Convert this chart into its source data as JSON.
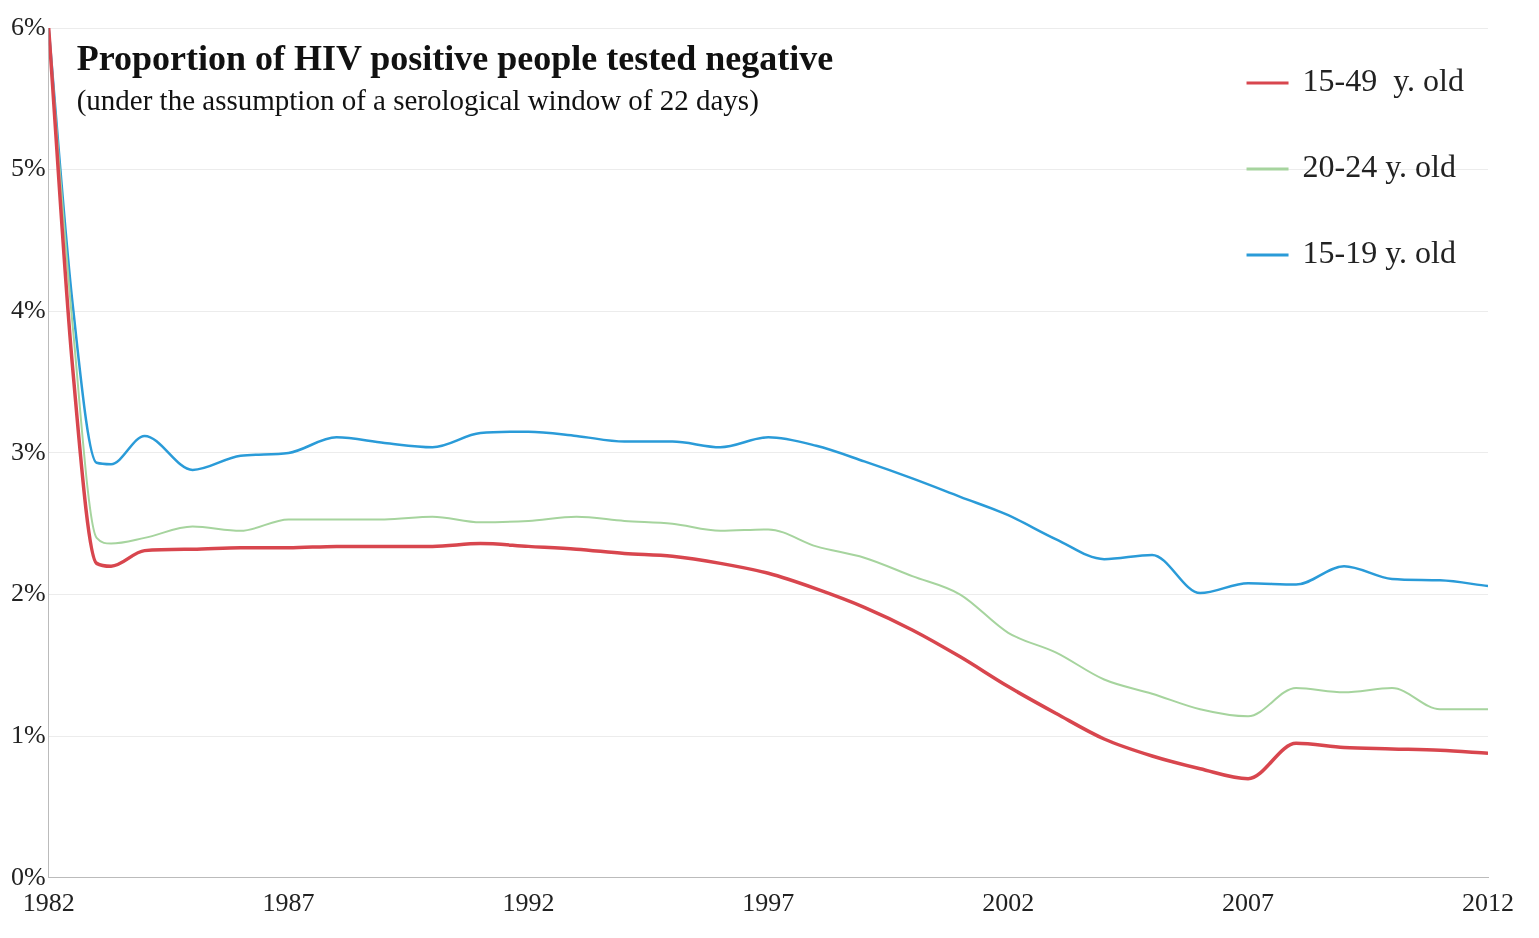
{
  "chart_data": {
    "type": "line",
    "title": "Proportion of HIV positive people tested negative",
    "subtitle": "(under the assumption of a serological window of 22 days)",
    "x": [
      1982,
      1982.5,
      1983,
      1983.3,
      1984,
      1985,
      1986,
      1987,
      1988,
      1989,
      1990,
      1991,
      1992,
      1993,
      1994,
      1995,
      1996,
      1997,
      1998,
      1999,
      2000,
      2001,
      2002,
      2003,
      2004,
      2005,
      2006,
      2007,
      2008,
      2009,
      2010,
      2011,
      2012
    ],
    "series": [
      {
        "name": "15-49  y. old",
        "color": "#d8464e",
        "values": [
          6.0,
          3.6,
          2.22,
          2.2,
          2.31,
          2.32,
          2.33,
          2.33,
          2.34,
          2.34,
          2.34,
          2.36,
          2.34,
          2.32,
          2.29,
          2.27,
          2.22,
          2.15,
          2.04,
          1.91,
          1.75,
          1.56,
          1.35,
          1.16,
          0.98,
          0.86,
          0.77,
          0.7,
          0.95,
          0.92,
          0.91,
          0.9,
          0.88
        ]
      },
      {
        "name": "20-24 y. old",
        "color": "#a6d49e",
        "values": [
          6.0,
          3.9,
          2.4,
          2.36,
          2.4,
          2.48,
          2.45,
          2.53,
          2.53,
          2.53,
          2.55,
          2.51,
          2.52,
          2.55,
          2.52,
          2.5,
          2.45,
          2.46,
          2.34,
          2.26,
          2.13,
          2.0,
          1.73,
          1.59,
          1.4,
          1.3,
          1.19,
          1.14,
          1.34,
          1.31,
          1.34,
          1.19,
          1.19
        ]
      },
      {
        "name": "15-19 y. old",
        "color": "#2a9bd8",
        "values": [
          6.0,
          4.05,
          2.93,
          2.92,
          3.12,
          2.88,
          2.98,
          3.0,
          3.11,
          3.07,
          3.04,
          3.14,
          3.15,
          3.12,
          3.08,
          3.08,
          3.04,
          3.11,
          3.05,
          2.94,
          2.82,
          2.69,
          2.56,
          2.39,
          2.25,
          2.28,
          2.01,
          2.08,
          2.07,
          2.2,
          2.11,
          2.1,
          2.06
        ]
      }
    ],
    "xlim": [
      1982,
      2012
    ],
    "xticks": [
      1982,
      1987,
      1992,
      1997,
      2002,
      2007,
      2012
    ],
    "ylim": [
      0,
      6
    ],
    "yticks": [
      {
        "value": 0,
        "label": "0%"
      },
      {
        "value": 1,
        "label": "1%"
      },
      {
        "value": 2,
        "label": "2%"
      },
      {
        "value": 3,
        "label": "3%"
      },
      {
        "value": 4,
        "label": "4%"
      },
      {
        "value": 5,
        "label": "5%"
      },
      {
        "value": 6,
        "label": "6%"
      }
    ],
    "grid": "y",
    "legend": "top right",
    "marker": "none",
    "line_style": "solid"
  }
}
